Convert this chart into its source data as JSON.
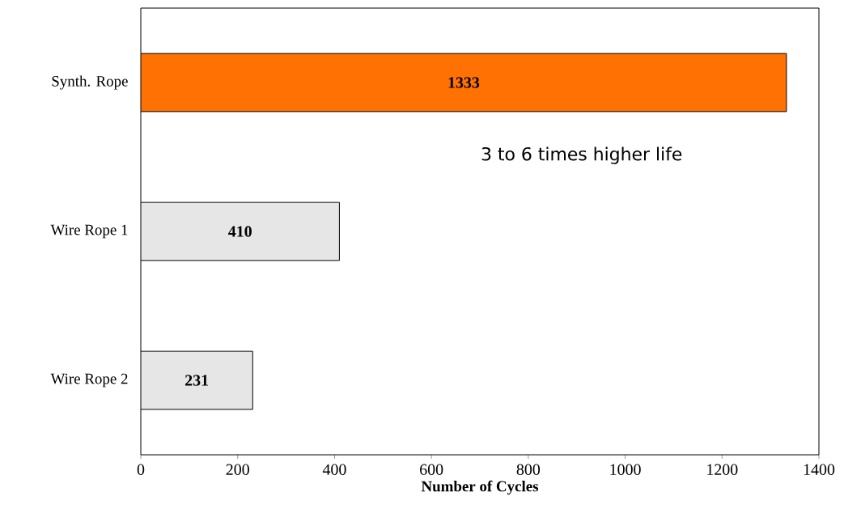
{
  "chart_data": {
    "type": "bar",
    "orientation": "horizontal",
    "categories": [
      "Synth. Rope",
      "Wire Rope 1",
      "Wire Rope 2"
    ],
    "values": [
      1333,
      410,
      231
    ],
    "value_labels": [
      "1333",
      "410",
      "231"
    ],
    "colors": [
      "#ff7103",
      "#e6e6e6",
      "#e6e6e6"
    ],
    "xlabel": "Number of Cycles",
    "xlim": [
      0,
      1400
    ],
    "xticks": [
      0,
      200,
      400,
      600,
      800,
      1000,
      1200,
      1400
    ],
    "grid": false,
    "annotations": [
      "3 to 6 times higher life"
    ]
  }
}
